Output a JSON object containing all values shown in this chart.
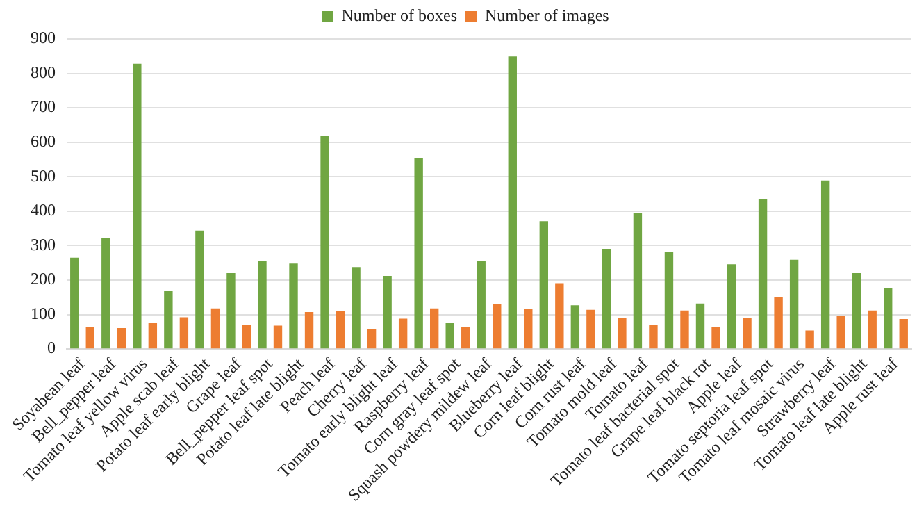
{
  "chart_data": {
    "type": "bar",
    "categories": [
      "Soyabean leaf",
      "Bell_pepper leaf",
      "Tomato leaf yellow virus",
      "Apple scab leaf",
      "Potato leaf early blight",
      "Grape leaf",
      "Bell_pepper leaf spot",
      "Potato leaf late blight",
      "Peach leaf",
      "Cherry leaf",
      "Tomato early blight leaf",
      "Raspberry leaf",
      "Corn gray leaf spot",
      "Squash powdery mildew leaf",
      "Blueberry leaf",
      "Corn leaf blight",
      "Corn rust leaf",
      "Tomato mold leaf",
      "Tomato leaf",
      "Tomato leaf bacterial spot",
      "Grape leaf black rot",
      "Apple leaf",
      "Tomato septoria leaf spot",
      "Tomato leaf mosaic virus",
      "Strawberry leaf",
      "Tomato leaf late blight",
      "Apple rust leaf"
    ],
    "series": [
      {
        "name": "Number of boxes",
        "color": "#70a642",
        "values": [
          265,
          322,
          828,
          170,
          344,
          220,
          255,
          248,
          618,
          238,
          212,
          555,
          76,
          255,
          849,
          371,
          127,
          291,
          395,
          281,
          132,
          246,
          435,
          259,
          489,
          220,
          178
        ]
      },
      {
        "name": "Number of images",
        "color": "#ed7d31",
        "values": [
          64,
          61,
          75,
          92,
          118,
          69,
          68,
          107,
          110,
          57,
          88,
          118,
          65,
          130,
          116,
          191,
          114,
          90,
          71,
          112,
          63,
          91,
          150,
          54,
          96,
          112,
          87
        ]
      }
    ],
    "ylim": [
      0,
      900
    ],
    "yticks": [
      0,
      100,
      200,
      300,
      400,
      500,
      600,
      700,
      800,
      900
    ],
    "grid": "y",
    "legend": "top"
  }
}
